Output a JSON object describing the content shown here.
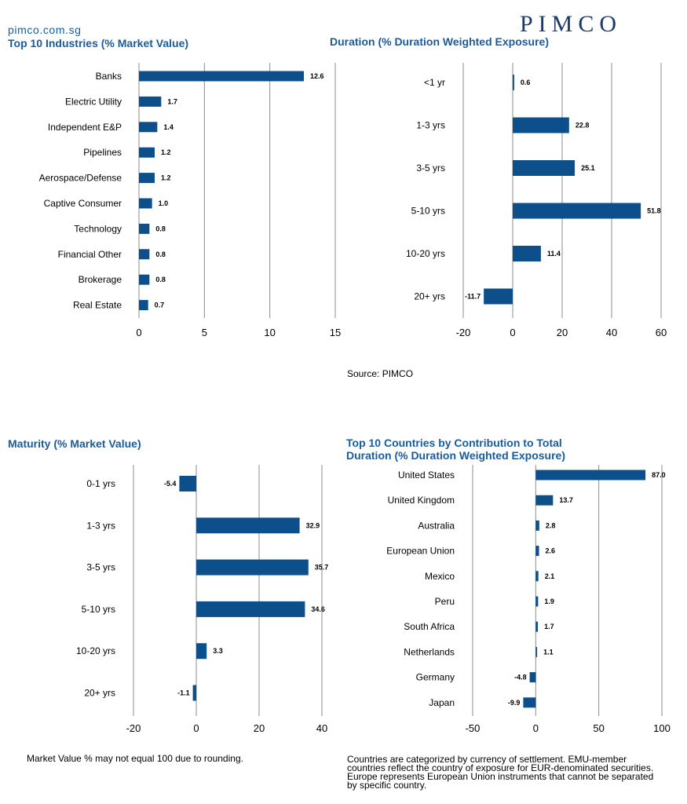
{
  "header": {
    "site": "pimco.com.sg",
    "brand": "PIMCO"
  },
  "source_note": "Source: PIMCO",
  "maturity_note": "Market Value % may not equal 100 due to rounding.",
  "countries_note": "Countries are categorized by currency of settlement. EMU-member countries reflect the country of exposure for EUR-denominated securities. Europe represents European Union instruments that cannot be separated by specific country.",
  "colors": {
    "bar": "#0d4f8b",
    "title": "#1a5b9a",
    "grid": "#8c8c8c"
  },
  "chart_data": [
    {
      "type": "bar",
      "title": "Top 10 Industries (% Market Value)",
      "categories": [
        "Banks",
        "Electric Utility",
        "Independent E&P",
        "Pipelines",
        "Aerospace/Defense",
        "Captive Consumer",
        "Technology",
        "Financial Other",
        "Brokerage",
        "Real Estate"
      ],
      "values": [
        12.6,
        1.7,
        1.4,
        1.2,
        1.2,
        1.0,
        0.8,
        0.8,
        0.8,
        0.7
      ],
      "value_labels": [
        "12.6",
        "1.7",
        "1.4",
        "1.2",
        "1.2",
        "1.0",
        "0.8",
        "0.8",
        "0.8",
        "0.7"
      ],
      "xlim": [
        0,
        15
      ],
      "xticks": [
        0,
        5,
        10,
        15
      ],
      "orientation": "horizontal",
      "grid": true
    },
    {
      "type": "bar",
      "title": "Duration (% Duration Weighted Exposure)",
      "categories": [
        "<1 yr",
        "1-3 yrs",
        "3-5 yrs",
        "5-10 yrs",
        "10-20 yrs",
        "20+ yrs"
      ],
      "values": [
        0.6,
        22.8,
        25.1,
        51.8,
        11.4,
        -11.7
      ],
      "value_labels": [
        "0.6",
        "22.8",
        "25.1",
        "51.8",
        "11.4",
        "-11.7"
      ],
      "xlim": [
        -20,
        60
      ],
      "xticks": [
        -20,
        0,
        20,
        40,
        60
      ],
      "orientation": "horizontal",
      "grid": true
    },
    {
      "type": "bar",
      "title": "Maturity (% Market Value)",
      "categories": [
        "0-1 yrs",
        "1-3 yrs",
        "3-5 yrs",
        "5-10 yrs",
        "10-20 yrs",
        "20+ yrs"
      ],
      "values": [
        -5.4,
        32.9,
        35.7,
        34.6,
        3.3,
        -1.1
      ],
      "value_labels": [
        "-5.4",
        "32.9",
        "35.7",
        "34.6",
        "3.3",
        "-1.1"
      ],
      "xlim": [
        -20,
        40
      ],
      "xticks": [
        -20,
        0,
        20,
        40
      ],
      "orientation": "horizontal",
      "grid": true
    },
    {
      "type": "bar",
      "title": "Top 10 Countries by Contribution to Total Duration (% Duration Weighted Exposure)",
      "categories": [
        "United States",
        "United Kingdom",
        "Australia",
        "European Union",
        "Mexico",
        "Peru",
        "South Africa",
        "Netherlands",
        "Germany",
        "Japan"
      ],
      "values": [
        87.0,
        13.7,
        2.8,
        2.6,
        2.1,
        1.9,
        1.7,
        1.1,
        -4.8,
        -9.9
      ],
      "value_labels": [
        "87.0",
        "13.7",
        "2.8",
        "2.6",
        "2.1",
        "1.9",
        "1.7",
        "1.1",
        "-4.8",
        "-9.9"
      ],
      "xlim": [
        -50,
        100
      ],
      "xticks": [
        -50,
        0,
        50,
        100
      ],
      "orientation": "horizontal",
      "grid": true
    }
  ]
}
